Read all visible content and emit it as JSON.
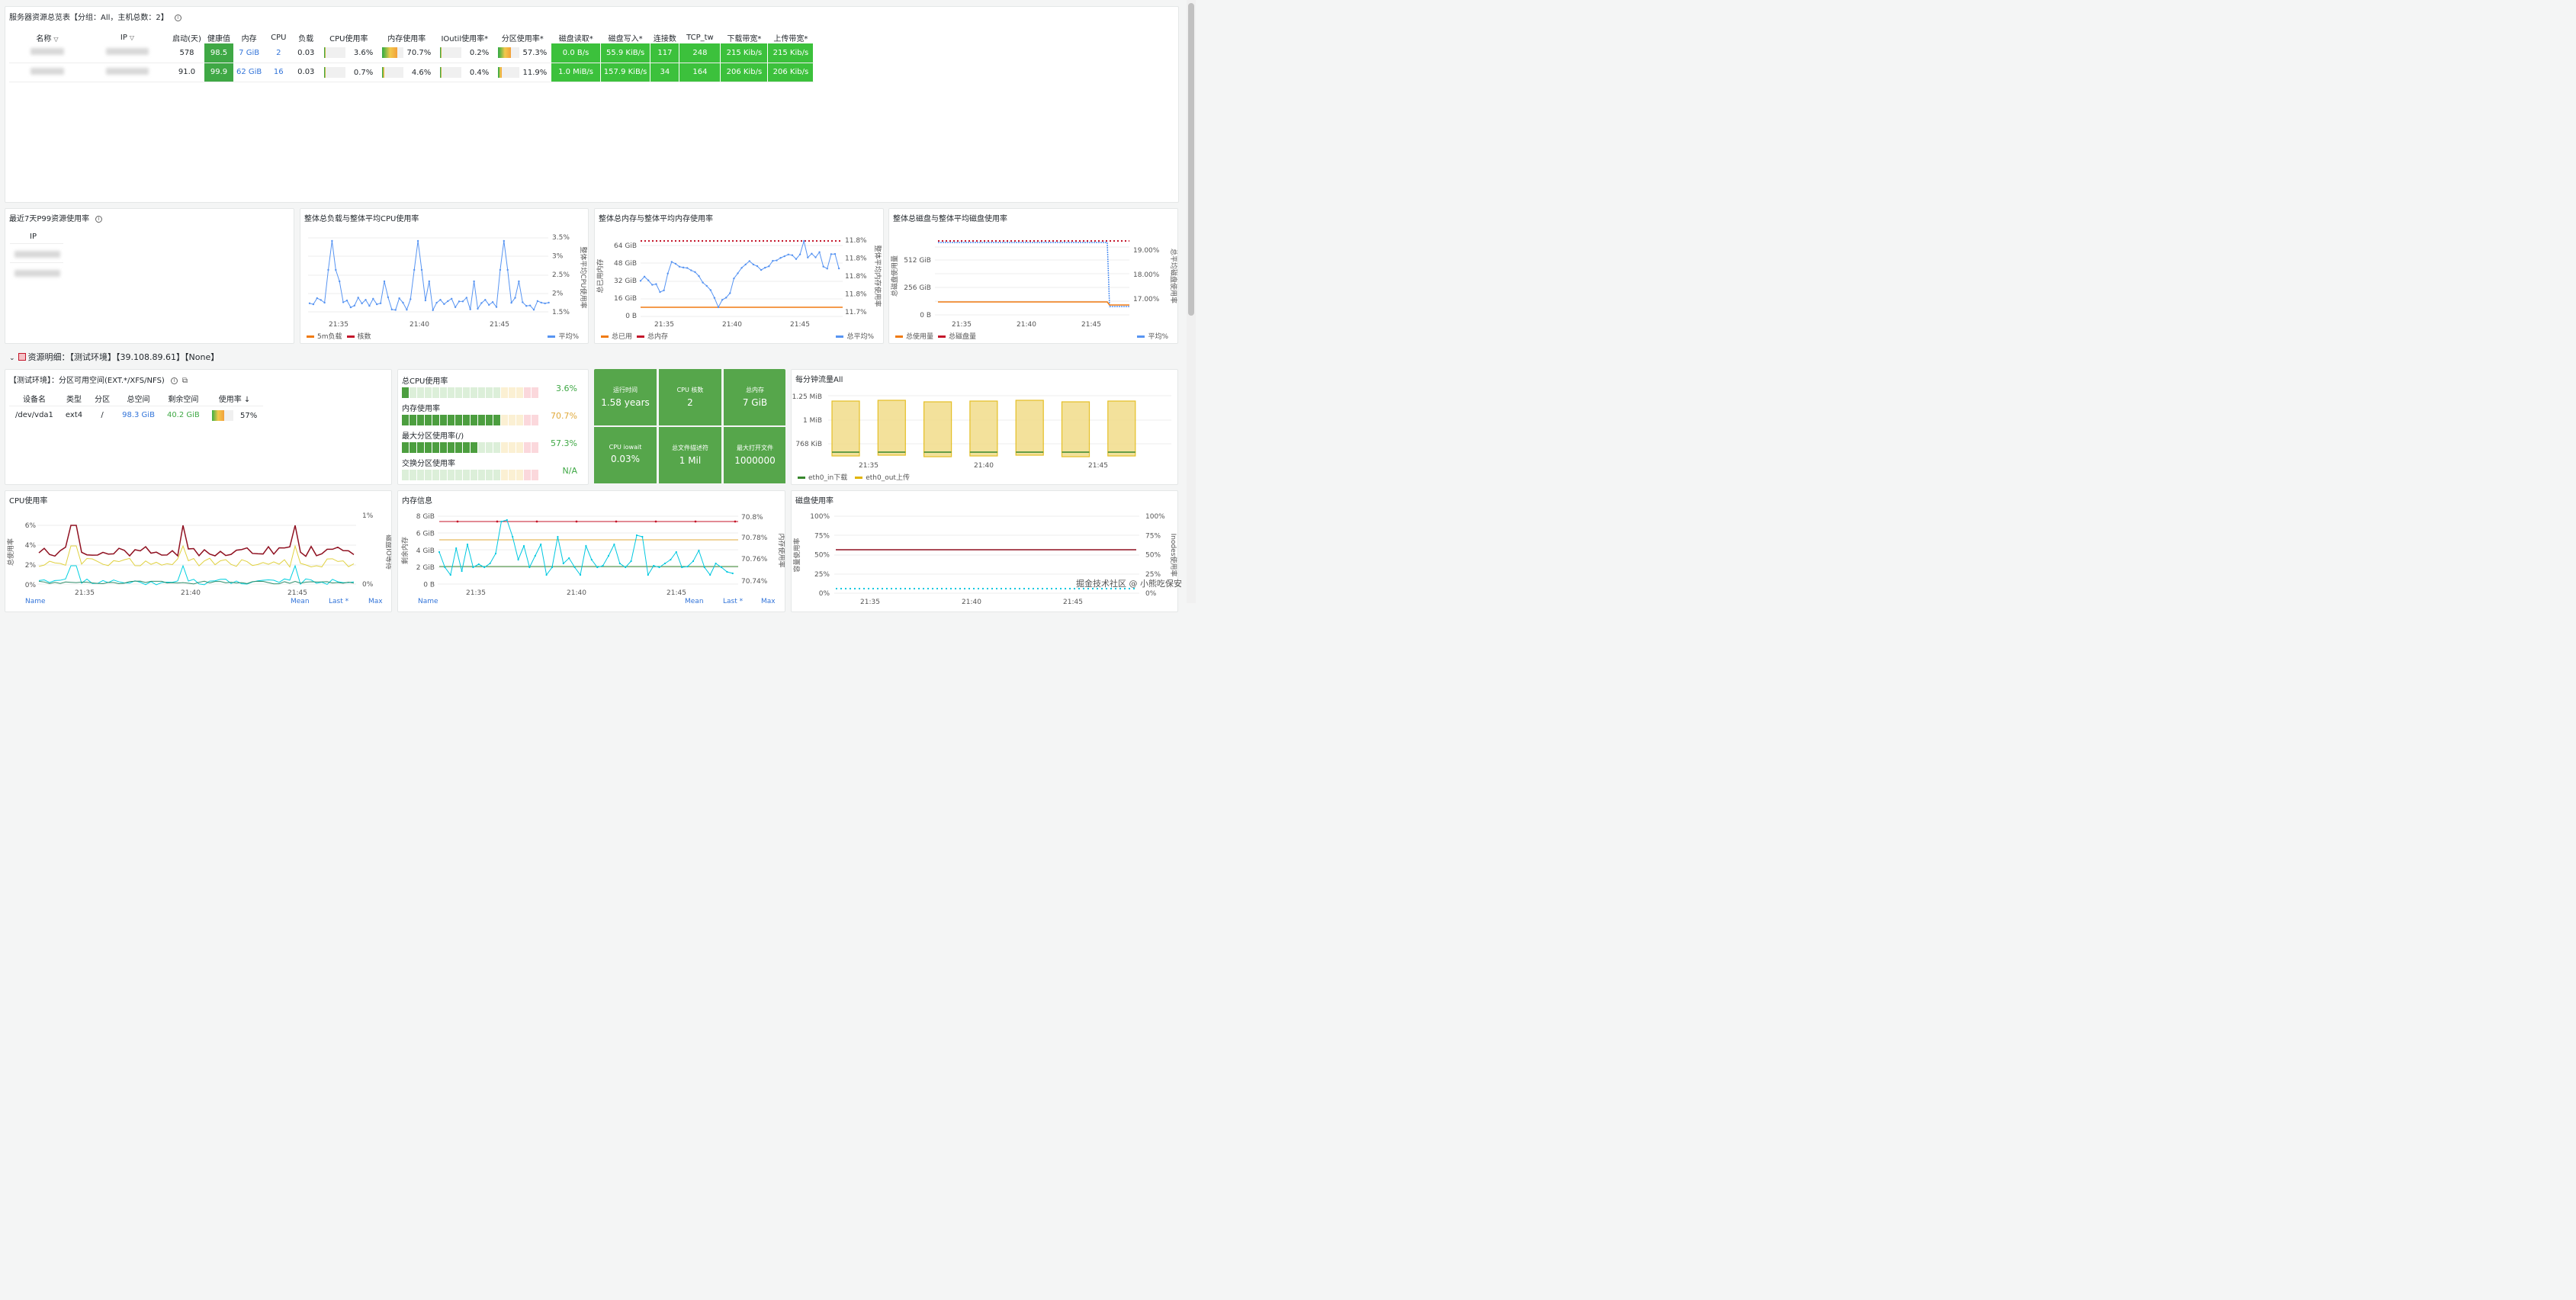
{
  "overview": {
    "title": "服务器资源总览表【分组：All，主机总数：2】",
    "headers": [
      "名称",
      "IP",
      "启动(天)",
      "健康值",
      "内存",
      "CPU",
      "负载",
      "CPU使用率",
      "内存使用率",
      "IOutil使用率*",
      "分区使用率*",
      "磁盘读取*",
      "磁盘写入*",
      "连接数",
      "TCP_tw",
      "下载带宽*",
      "上传带宽*"
    ],
    "rows": [
      {
        "uptime": "578",
        "health": "98.5",
        "mem": "7 GiB",
        "cpu": "2",
        "load": "0.03",
        "cpu_pct": "3.6%",
        "cpu_frac": 0.036,
        "mem_pct": "70.7%",
        "mem_frac": 0.707,
        "io_pct": "0.2%",
        "io_frac": 0.002,
        "part_pct": "57.3%",
        "part_frac": 0.573,
        "disk_read": "0.0 B/s",
        "disk_write": "55.9 KiB/s",
        "conn": "117",
        "tcp_tw": "248",
        "down": "215 Kib/s",
        "up": "215 Kib/s"
      },
      {
        "uptime": "91.0",
        "health": "99.9",
        "mem": "62 GiB",
        "cpu": "16",
        "load": "0.03",
        "cpu_pct": "0.7%",
        "cpu_frac": 0.007,
        "mem_pct": "4.6%",
        "mem_frac": 0.046,
        "io_pct": "0.4%",
        "io_frac": 0.004,
        "part_pct": "11.9%",
        "part_frac": 0.119,
        "disk_read": "1.0 MiB/s",
        "disk_write": "157.9 KiB/s",
        "conn": "34",
        "tcp_tw": "164",
        "down": "206 Kib/s",
        "up": "206 Kib/s"
      }
    ]
  },
  "p99": {
    "title": "最近7天P99资源使用率",
    "ip_header": "IP"
  },
  "load_panel": {
    "title": "整体总负载与整体平均CPU使用率",
    "legend": [
      "5m负载",
      "核数",
      "平均%"
    ],
    "x_ticks": [
      "21:35",
      "21:40",
      "21:45"
    ],
    "y_right": [
      "3.5%",
      "3%",
      "2.5%",
      "2%",
      "1.5%"
    ],
    "y_right_label": "整体平均CPU使用率"
  },
  "mem_panel": {
    "title": "整体总内存与整体平均内存使用率",
    "legend": [
      "总已用",
      "总内存",
      "总平均%"
    ],
    "x_ticks": [
      "21:35",
      "21:40",
      "21:45"
    ],
    "y_left": [
      "64 GiB",
      "48 GiB",
      "32 GiB",
      "16 GiB",
      "0 B"
    ],
    "y_right": [
      "11.8%",
      "11.8%",
      "11.8%",
      "11.8%",
      "11.7%"
    ],
    "y_left_label": "总已用内存",
    "y_right_label": "整体平均内存使用率"
  },
  "disk_panel": {
    "title": "整体总磁盘与整体平均磁盘使用率",
    "legend": [
      "总使用量",
      "总磁盘量",
      "平均%"
    ],
    "x_ticks": [
      "21:35",
      "21:40",
      "21:45"
    ],
    "y_left": [
      "512 GiB",
      "256 GiB",
      "0 B"
    ],
    "y_right": [
      "19.00%",
      "18.00%",
      "17.00%"
    ],
    "y_left_label": "总磁盘使用量",
    "y_right_label": "总平均磁盘使用率"
  },
  "section": {
    "title": "资源明细：【测试环境】【39.108.89.61】【None】"
  },
  "partition": {
    "title": "【测试环境】：分区可用空间(EXT.*/XFS/NFS)",
    "headers": [
      "设备名",
      "类型",
      "分区",
      "总空间",
      "剩余空间",
      "使用率 ↓"
    ],
    "row": {
      "dev": "/dev/vda1",
      "type": "ext4",
      "mount": "/",
      "total": "98.3 GiB",
      "free": "40.2 GiB",
      "pct": "57%",
      "frac": 0.57
    }
  },
  "gauges": [
    {
      "label": "总CPU使用率",
      "value": "3.6%",
      "frac": 0.036,
      "color": "#3fa845"
    },
    {
      "label": "内存使用率",
      "value": "70.7%",
      "frac": 0.707,
      "color": "#e0a93a"
    },
    {
      "label": "最大分区使用率(/)",
      "value": "57.3%",
      "frac": 0.573,
      "color": "#3fa845"
    },
    {
      "label": "交换分区使用率",
      "value": "N/A",
      "frac": 0,
      "color": "#3fa845"
    }
  ],
  "stats": [
    {
      "label": "运行时间",
      "value": "1.58 years"
    },
    {
      "label": "CPU 核数",
      "value": "2"
    },
    {
      "label": "总内存",
      "value": "7 GiB"
    },
    {
      "label": "CPU iowait",
      "value": "0.03%"
    },
    {
      "label": "总文件描述符",
      "value": "1 Mil"
    },
    {
      "label": "最大打开文件",
      "value": "1000000"
    }
  ],
  "traffic": {
    "title": "每分钟流量All",
    "y_ticks": [
      "1.25 MiB",
      "1 MiB",
      "768 KiB"
    ],
    "x_ticks": [
      "21:35",
      "21:40",
      "21:45"
    ],
    "legend": [
      "eth0_in下载",
      "eth0_out上传"
    ]
  },
  "cpu_panel": {
    "title": "CPU使用率",
    "y_left": [
      "6%",
      "4%",
      "2%",
      "0%"
    ],
    "y_right": [
      "1%",
      "0%"
    ],
    "x_ticks": [
      "21:35",
      "21:40",
      "21:45"
    ],
    "y_left_label": "总使用率",
    "y_right_label": "磁盘IO等待",
    "footer": [
      "Name",
      "Mean",
      "Last *",
      "Max"
    ]
  },
  "meminfo_panel": {
    "title": "内存信息",
    "y_left": [
      "8 GiB",
      "6 GiB",
      "4 GiB",
      "2 GiB",
      "0 B"
    ],
    "y_right": [
      "70.8%",
      "70.78%",
      "70.76%",
      "70.74%"
    ],
    "x_ticks": [
      "21:35",
      "21:40",
      "21:45"
    ],
    "y_left_label": "剩余内存",
    "y_right_label": "内存使用率",
    "footer": [
      "Name",
      "Mean",
      "Last *",
      "Max"
    ]
  },
  "diskuse_panel": {
    "title": "磁盘使用率",
    "y_left": [
      "100%",
      "75%",
      "50%",
      "25%",
      "0%"
    ],
    "y_right": [
      "100%",
      "75%",
      "50%",
      "25%",
      "0%"
    ],
    "x_ticks": [
      "21:35",
      "21:40",
      "21:45"
    ],
    "y_left_label": "容量使用率",
    "y_right_label": "Inodes使用率"
  },
  "watermark": "掘金技术社区 @ 小熊吃保安"
}
